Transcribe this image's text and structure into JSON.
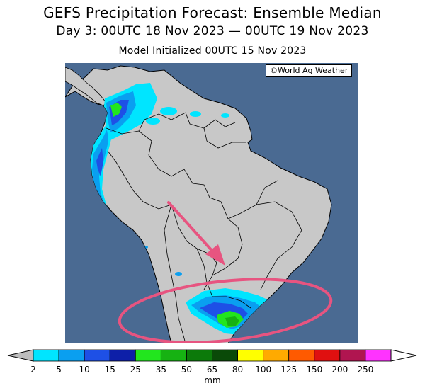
{
  "header": {
    "title": "GEFS Precipitation Forecast: Ensemble Median",
    "period": "Day 3: 00UTC 18 Nov 2023 — 00UTC 19 Nov 2023",
    "init": "Model Initialized 00UTC 15 Nov 2023"
  },
  "credit": "©World Ag Weather",
  "colors": {
    "ocean": "#4a6a92",
    "land": "#c8c8c8",
    "border": "#000000",
    "annotation": "#e75480"
  },
  "legend": {
    "unit": "mm",
    "ticks": [
      "2",
      "5",
      "10",
      "15",
      "25",
      "35",
      "50",
      "65",
      "80",
      "100",
      "125",
      "150",
      "200",
      "250"
    ],
    "colors": [
      "#00e5ff",
      "#0a9ff0",
      "#1e50e6",
      "#0d1fa8",
      "#22e61e",
      "#16b212",
      "#0c7a0a",
      "#0a4a08",
      "#ffff00",
      "#ffaa00",
      "#ff5a00",
      "#e01010",
      "#b01550",
      "#ff33ff",
      "#a050c8"
    ]
  },
  "annotations": [
    "arrow",
    "ellipse"
  ]
}
